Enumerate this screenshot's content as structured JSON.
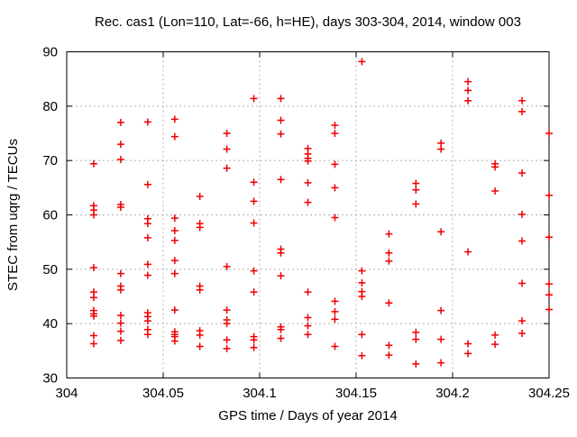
{
  "title": "Rec. cas1 (Lon=110, Lat=-66, h=HE), days 303-304, 2014, window 003",
  "colors": {
    "marker": "#ee0000",
    "grid": "#b0b0b0",
    "axis": "#000000",
    "background": "#ffffff"
  },
  "chart_data": {
    "type": "scatter",
    "title": "Rec. cas1 (Lon=110, Lat=-66, h=HE), days 303-304, 2014, window 003",
    "xlabel": "GPS time / Days of year 2014",
    "ylabel": "STEC from uqrg / TECUs",
    "xlim": [
      304,
      304.25
    ],
    "ylim": [
      30,
      90
    ],
    "xticks": [
      304,
      304.05,
      304.1,
      304.15,
      304.2,
      304.25
    ],
    "xtick_labels": [
      "304",
      "304.05",
      "304.1",
      "304.15",
      "304.2",
      "304.25"
    ],
    "yticks": [
      30,
      40,
      50,
      60,
      70,
      80,
      90
    ],
    "ytick_labels": [
      "30",
      "40",
      "50",
      "60",
      "70",
      "80",
      "90"
    ],
    "grid": true,
    "legend": "none",
    "marker": "plus",
    "series": [
      {
        "name": "STEC",
        "color": "#ee0000",
        "groups": [
          {
            "x": 304.014,
            "ys": [
              69.4,
              61.7,
              60.9,
              60.0,
              50.3,
              45.8,
              44.8,
              42.4,
              41.8,
              41.4,
              37.8,
              36.3
            ]
          },
          {
            "x": 304.028,
            "ys": [
              77.0,
              73.0,
              70.2,
              61.9,
              61.4,
              49.2,
              46.9,
              46.2,
              41.5,
              40.1,
              38.6,
              36.9
            ]
          },
          {
            "x": 304.042,
            "ys": [
              77.1,
              65.6,
              59.3,
              58.4,
              55.8,
              50.9,
              48.9,
              42.0,
              41.3,
              40.5,
              38.9,
              38.0
            ]
          },
          {
            "x": 304.056,
            "ys": [
              77.6,
              74.4,
              59.4,
              57.1,
              55.3,
              51.6,
              49.2,
              42.5,
              38.5,
              38.0,
              37.6,
              36.8
            ]
          },
          {
            "x": 304.069,
            "ys": [
              63.4,
              58.4,
              57.7,
              46.9,
              46.2,
              38.7,
              37.9,
              35.8
            ]
          },
          {
            "x": 304.083,
            "ys": [
              75.0,
              72.1,
              68.6,
              50.5,
              42.5,
              40.7,
              40.0,
              37.0,
              35.4
            ]
          },
          {
            "x": 304.097,
            "ys": [
              81.4,
              66.0,
              62.5,
              58.5,
              49.7,
              45.8,
              37.6,
              37.0,
              35.6
            ]
          },
          {
            "x": 304.111,
            "ys": [
              81.4,
              77.4,
              74.9,
              66.5,
              53.7,
              53.0,
              48.8,
              39.4,
              38.9,
              37.3
            ]
          },
          {
            "x": 304.125,
            "ys": [
              72.2,
              71.2,
              70.4,
              69.9,
              65.9,
              62.3,
              45.8,
              41.1,
              39.6,
              38.0
            ]
          },
          {
            "x": 304.139,
            "ys": [
              76.5,
              75.0,
              69.3,
              65.0,
              59.5,
              44.1,
              42.2,
              40.8,
              35.8
            ]
          },
          {
            "x": 304.153,
            "ys": [
              88.2,
              49.7,
              47.5,
              45.9,
              45.0,
              38.0,
              34.1
            ]
          },
          {
            "x": 304.167,
            "ys": [
              56.5,
              53.0,
              51.5,
              43.8,
              36.0,
              34.2
            ]
          },
          {
            "x": 304.181,
            "ys": [
              65.8,
              64.6,
              62.0,
              38.4,
              37.1,
              32.6
            ]
          },
          {
            "x": 304.194,
            "ys": [
              73.2,
              72.1,
              56.9,
              42.4,
              37.1,
              32.8
            ]
          },
          {
            "x": 304.208,
            "ys": [
              84.5,
              82.9,
              81.0,
              53.2,
              36.3,
              34.5
            ]
          },
          {
            "x": 304.222,
            "ys": [
              69.4,
              68.8,
              64.4,
              37.9,
              36.2
            ]
          },
          {
            "x": 304.236,
            "ys": [
              81.0,
              79.0,
              67.7,
              60.1,
              55.2,
              47.4,
              40.5,
              38.2
            ]
          },
          {
            "x": 304.25,
            "ys": [
              75.0,
              63.6,
              55.9,
              47.3,
              45.3,
              42.6
            ]
          }
        ]
      }
    ]
  }
}
